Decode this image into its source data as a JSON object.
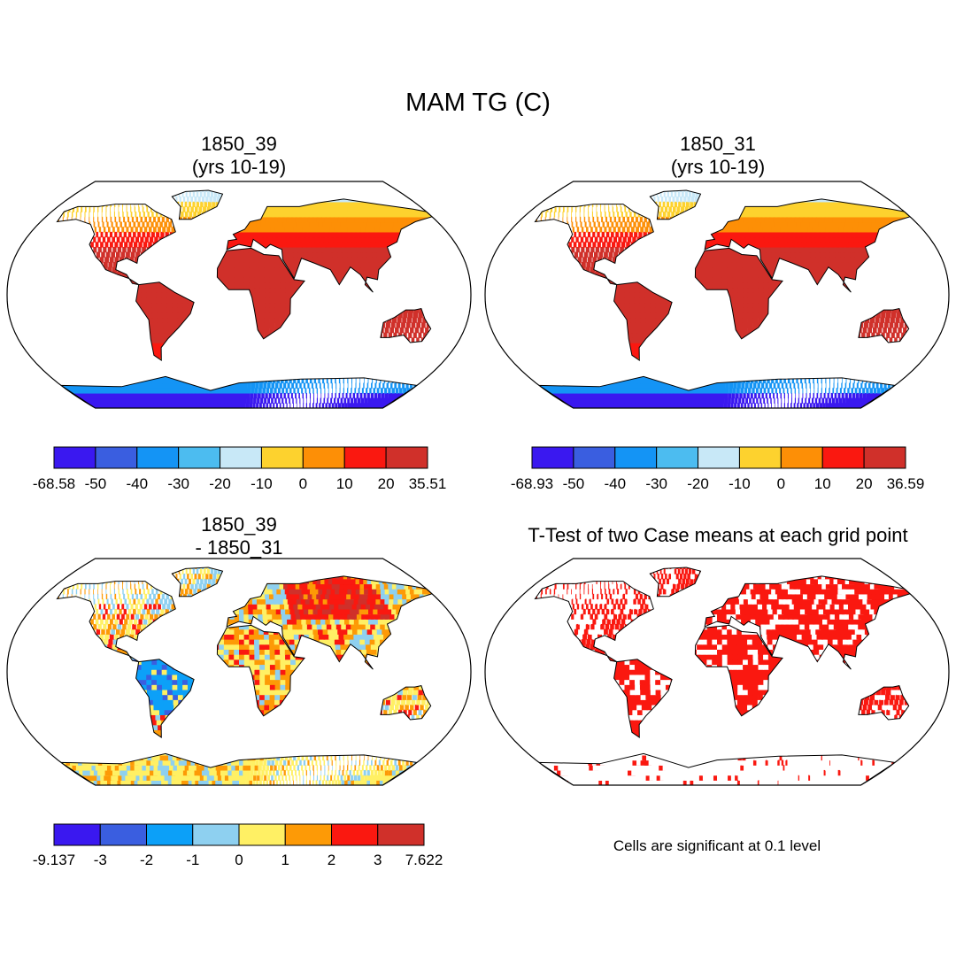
{
  "title": "MAM TG (C)",
  "panels": [
    {
      "title_line1": "1850_39",
      "title_line2": "(yrs 10-19)",
      "kind": "climo"
    },
    {
      "title_line1": "1850_31",
      "title_line2": "(yrs 10-19)",
      "kind": "climo"
    },
    {
      "title_line1": "1850_39",
      "title_line2": "- 1850_31",
      "kind": "diff"
    },
    {
      "title_line1": "T-Test of two Case means at each grid point",
      "title_line2": "",
      "kind": "ttest"
    }
  ],
  "colorbars": [
    {
      "colors": [
        "#3a18f0",
        "#3a5ee0",
        "#1494f5",
        "#4cbcf0",
        "#c8e8f7",
        "#fdd22e",
        "#fd8f06",
        "#fa1810",
        "#d0302a"
      ],
      "labels": [
        "-68.58",
        "-50",
        "-40",
        "-30",
        "-20",
        "-10",
        "0",
        "10",
        "20",
        "35.51"
      ]
    },
    {
      "colors": [
        "#3a18f0",
        "#3a5ee0",
        "#1494f5",
        "#4cbcf0",
        "#c8e8f7",
        "#fdd22e",
        "#fd8f06",
        "#fa1810",
        "#d0302a"
      ],
      "labels": [
        "-68.93",
        "-50",
        "-40",
        "-30",
        "-20",
        "-10",
        "0",
        "10",
        "20",
        "36.59"
      ]
    },
    {
      "colors": [
        "#3a18f0",
        "#3a5ee0",
        "#0ca0f8",
        "#8ed0f0",
        "#fff064",
        "#fd9a06",
        "#fa1810",
        "#d0302a"
      ],
      "labels": [
        "-9.137",
        "-3",
        "-2",
        "-1",
        "0",
        "1",
        "2",
        "3",
        "7.622"
      ]
    }
  ],
  "significance_note": "Cells are significant at 0.1 level"
}
